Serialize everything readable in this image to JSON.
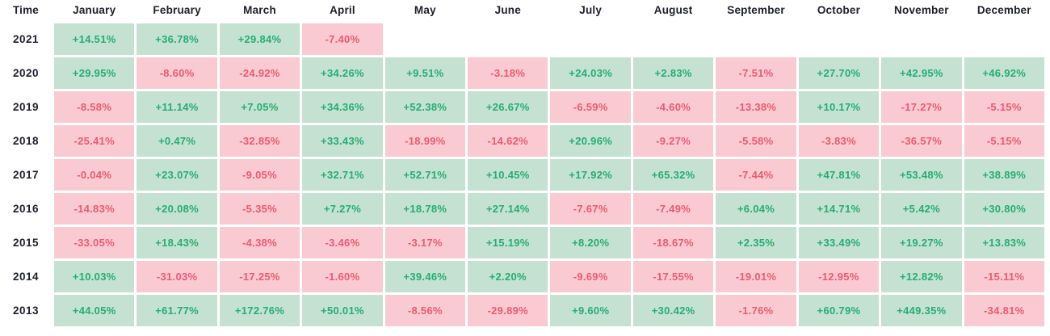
{
  "colors": {
    "positive_bg": "#c4e1d2",
    "positive_text": "#25ae73",
    "negative_bg": "#f9cad2",
    "negative_text": "#ee5a6f",
    "header_text": "#20202e"
  },
  "table": {
    "time_label": "Time",
    "months": [
      "January",
      "February",
      "March",
      "April",
      "May",
      "June",
      "July",
      "August",
      "September",
      "October",
      "November",
      "December"
    ],
    "rows": [
      {
        "year": "2021",
        "values": [
          "+14.51%",
          "+36.78%",
          "+29.84%",
          "-7.40%",
          null,
          null,
          null,
          null,
          null,
          null,
          null,
          null
        ]
      },
      {
        "year": "2020",
        "values": [
          "+29.95%",
          "-8.60%",
          "-24.92%",
          "+34.26%",
          "+9.51%",
          "-3.18%",
          "+24.03%",
          "+2.83%",
          "-7.51%",
          "+27.70%",
          "+42.95%",
          "+46.92%"
        ]
      },
      {
        "year": "2019",
        "values": [
          "-8.58%",
          "+11.14%",
          "+7.05%",
          "+34.36%",
          "+52.38%",
          "+26.67%",
          "-6.59%",
          "-4.60%",
          "-13.38%",
          "+10.17%",
          "-17.27%",
          "-5.15%"
        ]
      },
      {
        "year": "2018",
        "values": [
          "-25.41%",
          "+0.47%",
          "-32.85%",
          "+33.43%",
          "-18.99%",
          "-14.62%",
          "+20.96%",
          "-9.27%",
          "-5.58%",
          "-3.83%",
          "-36.57%",
          "-5.15%"
        ]
      },
      {
        "year": "2017",
        "values": [
          "-0.04%",
          "+23.07%",
          "-9.05%",
          "+32.71%",
          "+52.71%",
          "+10.45%",
          "+17.92%",
          "+65.32%",
          "-7.44%",
          "+47.81%",
          "+53.48%",
          "+38.89%"
        ]
      },
      {
        "year": "2016",
        "values": [
          "-14.83%",
          "+20.08%",
          "-5.35%",
          "+7.27%",
          "+18.78%",
          "+27.14%",
          "-7.67%",
          "-7.49%",
          "+6.04%",
          "+14.71%",
          "+5.42%",
          "+30.80%"
        ]
      },
      {
        "year": "2015",
        "values": [
          "-33.05%",
          "+18.43%",
          "-4.38%",
          "-3.46%",
          "-3.17%",
          "+15.19%",
          "+8.20%",
          "-18.67%",
          "+2.35%",
          "+33.49%",
          "+19.27%",
          "+13.83%"
        ]
      },
      {
        "year": "2014",
        "values": [
          "+10.03%",
          "-31.03%",
          "-17.25%",
          "-1.60%",
          "+39.46%",
          "+2.20%",
          "-9.69%",
          "-17.55%",
          "-19.01%",
          "-12.95%",
          "+12.82%",
          "-15.11%"
        ]
      },
      {
        "year": "2013",
        "values": [
          "+44.05%",
          "+61.77%",
          "+172.76%",
          "+50.01%",
          "-8.56%",
          "-29.89%",
          "+9.60%",
          "+30.42%",
          "-1.76%",
          "+60.79%",
          "+449.35%",
          "-34.81%"
        ]
      }
    ]
  },
  "chart_data": {
    "type": "heatmap",
    "title": "",
    "xlabel": "Time",
    "categories": [
      "January",
      "February",
      "March",
      "April",
      "May",
      "June",
      "July",
      "August",
      "September",
      "October",
      "November",
      "December"
    ],
    "rows": [
      "2021",
      "2020",
      "2019",
      "2018",
      "2017",
      "2016",
      "2015",
      "2014",
      "2013"
    ],
    "values_percent": [
      [
        14.51,
        36.78,
        29.84,
        -7.4,
        null,
        null,
        null,
        null,
        null,
        null,
        null,
        null
      ],
      [
        29.95,
        -8.6,
        -24.92,
        34.26,
        9.51,
        -3.18,
        24.03,
        2.83,
        -7.51,
        27.7,
        42.95,
        46.92
      ],
      [
        -8.58,
        11.14,
        7.05,
        34.36,
        52.38,
        26.67,
        -6.59,
        -4.6,
        -13.38,
        10.17,
        -17.27,
        -5.15
      ],
      [
        -25.41,
        0.47,
        -32.85,
        33.43,
        -18.99,
        -14.62,
        20.96,
        -9.27,
        -5.58,
        -3.83,
        -36.57,
        -5.15
      ],
      [
        -0.04,
        23.07,
        -9.05,
        32.71,
        52.71,
        10.45,
        17.92,
        65.32,
        -7.44,
        47.81,
        53.48,
        38.89
      ],
      [
        -14.83,
        20.08,
        -5.35,
        7.27,
        18.78,
        27.14,
        -7.67,
        -7.49,
        6.04,
        14.71,
        5.42,
        30.8
      ],
      [
        -33.05,
        18.43,
        -4.38,
        -3.46,
        -3.17,
        15.19,
        8.2,
        -18.67,
        2.35,
        33.49,
        19.27,
        13.83
      ],
      [
        10.03,
        -31.03,
        -17.25,
        -1.6,
        39.46,
        2.2,
        -9.69,
        -17.55,
        -19.01,
        -12.95,
        12.82,
        -15.11
      ],
      [
        44.05,
        61.77,
        172.76,
        50.01,
        -8.56,
        -29.89,
        9.6,
        30.42,
        -1.76,
        60.79,
        449.35,
        -34.81
      ]
    ],
    "legend": "green = positive monthly return, pink = negative monthly return",
    "grid": false
  }
}
